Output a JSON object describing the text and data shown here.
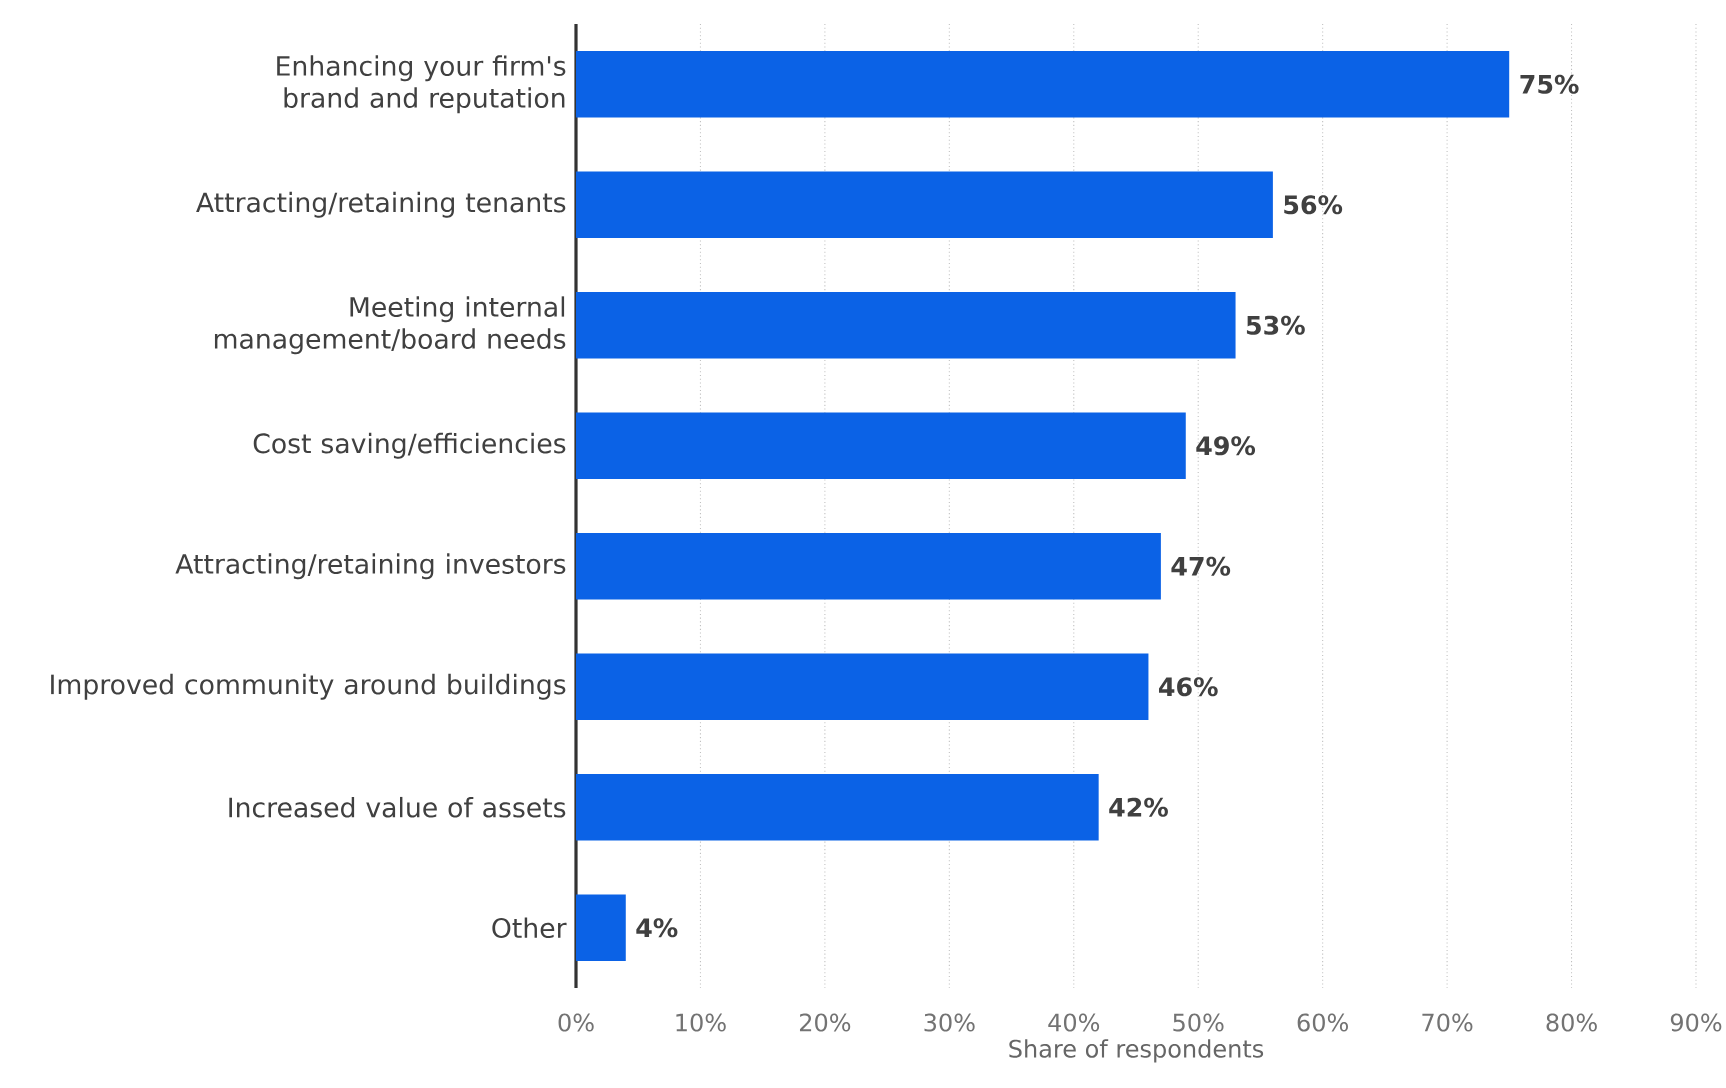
{
  "chart_data": {
    "type": "bar",
    "orientation": "horizontal",
    "xlabel": "Share of respondents",
    "categories": [
      "Enhancing your firm's brand and reputation",
      "Attracting/retaining tenants",
      "Meeting internal management/board needs",
      "Cost saving/efficiencies",
      "Attracting/retaining investors",
      "Improved community around buildings",
      "Increased value of assets",
      "Other"
    ],
    "values": [
      75,
      56,
      53,
      49,
      47,
      46,
      42,
      4
    ],
    "value_labels": [
      "75%",
      "56%",
      "53%",
      "49%",
      "47%",
      "46%",
      "42%",
      "4%"
    ],
    "color": "#0b62e6",
    "xlim": [
      0,
      90
    ],
    "xticks": [
      {
        "value": 0,
        "label": "0%"
      },
      {
        "value": 10,
        "label": "10%"
      },
      {
        "value": 20,
        "label": "20%"
      },
      {
        "value": 30,
        "label": "30%"
      },
      {
        "value": 40,
        "label": "40%"
      },
      {
        "value": 50,
        "label": "50%"
      },
      {
        "value": 60,
        "label": "60%"
      },
      {
        "value": 70,
        "label": "70%"
      },
      {
        "value": 80,
        "label": "80%"
      },
      {
        "value": 90,
        "label": "90%"
      }
    ],
    "grid": "x"
  }
}
